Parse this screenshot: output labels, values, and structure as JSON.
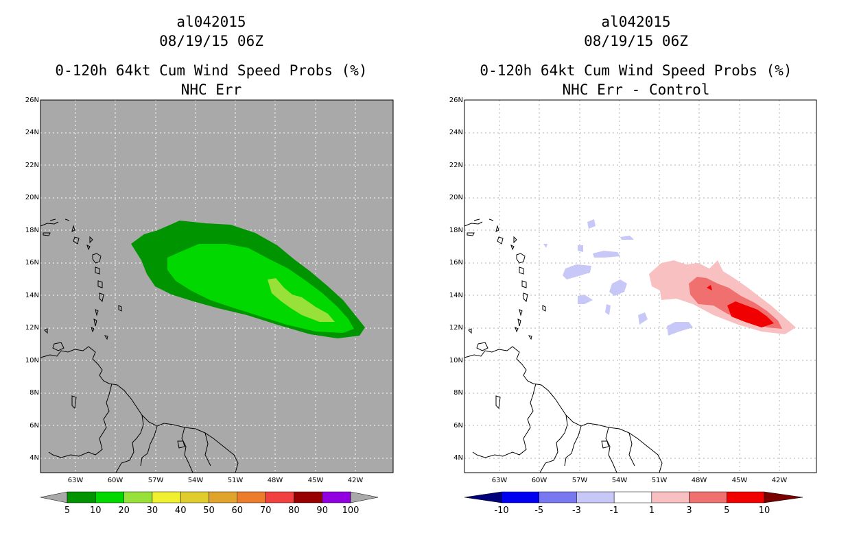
{
  "panels": [
    {
      "storm_id": "al042015",
      "datetime": "08/19/15 06Z",
      "product": "0-120h 64kt Cum Wind Speed Probs (%)",
      "subtitle": "NHC Err",
      "lat_labels": [
        "26N",
        "24N",
        "22N",
        "20N",
        "18N",
        "16N",
        "14N",
        "12N",
        "10N",
        "8N",
        "6N",
        "4N"
      ],
      "lon_labels": [
        "63W",
        "60W",
        "57W",
        "54W",
        "51W",
        "48W",
        "45W",
        "42W"
      ],
      "colorbar": {
        "labels": [
          "5",
          "10",
          "20",
          "30",
          "40",
          "50",
          "60",
          "70",
          "80",
          "90",
          "100"
        ],
        "colors": [
          "#009400",
          "#00d800",
          "#98e03a",
          "#f0f030",
          "#e0cc2c",
          "#e0a42c",
          "#ec7c2c",
          "#f04040",
          "#980000",
          "#9000e0"
        ],
        "under_color": "#a9a9a9",
        "over_color": "#a9a9a9"
      },
      "map_background": "#a9a9a9"
    },
    {
      "storm_id": "al042015",
      "datetime": "08/19/15 06Z",
      "product": "0-120h 64kt Cum Wind Speed Probs (%)",
      "subtitle": "NHC Err - Control",
      "lat_labels": [
        "26N",
        "24N",
        "22N",
        "20N",
        "18N",
        "16N",
        "14N",
        "12N",
        "10N",
        "8N",
        "6N",
        "4N"
      ],
      "lon_labels": [
        "63W",
        "60W",
        "57W",
        "54W",
        "51W",
        "48W",
        "45W",
        "42W"
      ],
      "colorbar": {
        "labels": [
          "-10",
          "-5",
          "-3",
          "-1",
          "1",
          "3",
          "5",
          "10"
        ],
        "colors": [
          "#0000f0",
          "#7878f0",
          "#c8c8f8",
          "#ffffff",
          "#f8c0c0",
          "#f07070",
          "#f00000"
        ],
        "under_color": "#00007a",
        "over_color": "#7a0000"
      },
      "map_background": "#ffffff"
    }
  ]
}
